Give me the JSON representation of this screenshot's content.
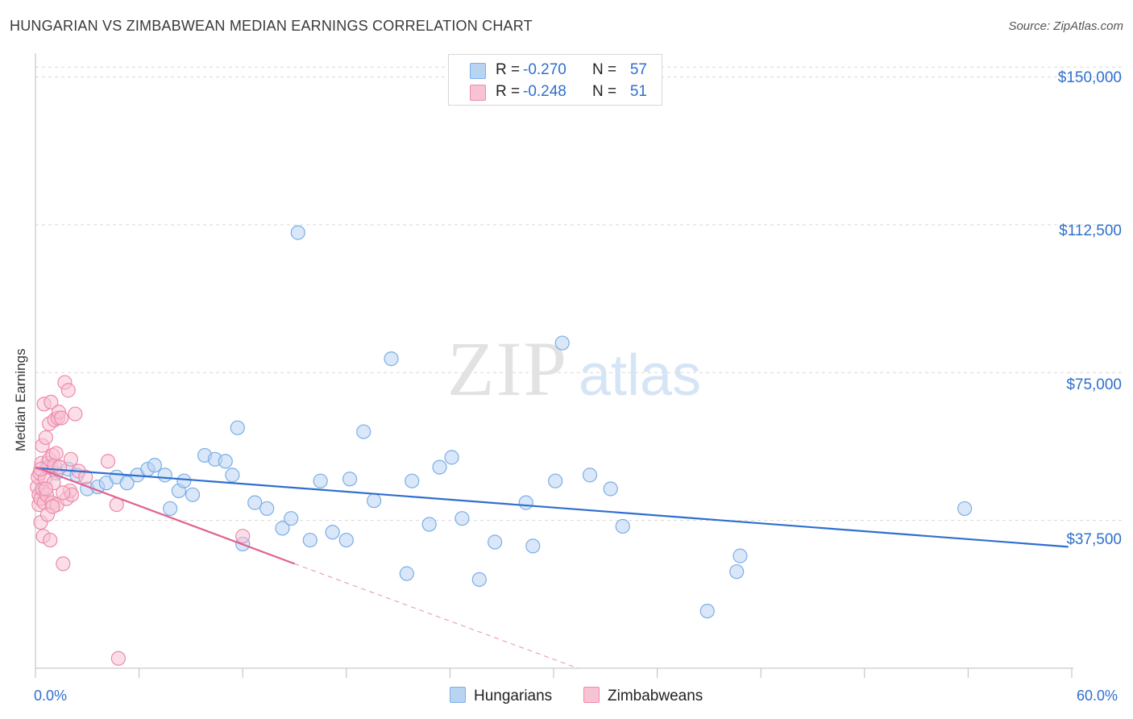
{
  "chart_data": {
    "type": "scatter",
    "title": "HUNGARIAN VS ZIMBABWEAN MEDIAN EARNINGS CORRELATION CHART",
    "source": "Source: ZipAtlas.com",
    "xlabel": "",
    "ylabel": "Median Earnings",
    "xlim": [
      0,
      60
    ],
    "ylim": [
      0,
      155000
    ],
    "x_tick_labels": [
      "0.0%",
      "60.0%"
    ],
    "y_ticks": [
      {
        "value": 37500,
        "label": "$37,500"
      },
      {
        "value": 75000,
        "label": "$75,000"
      },
      {
        "value": 112500,
        "label": "$112,500"
      },
      {
        "value": 150000,
        "label": "$150,000"
      }
    ],
    "legend": {
      "r_label": "R =",
      "n_label": "N =",
      "entries": [
        {
          "name": "Hungarians",
          "r": "-0.270",
          "n": "57",
          "color": "#7aaee8",
          "fill": "#b9d3f3"
        },
        {
          "name": "Zimbabweans",
          "r": "-0.248",
          "n": "51",
          "color": "#ee8aaa",
          "fill": "#f7c3d3"
        }
      ]
    },
    "series": [
      {
        "name": "Hungarians",
        "color": "#7aaee8",
        "trend": {
          "x": [
            0.0,
            59.8
          ],
          "y": [
            50800,
            30800
          ],
          "color": "#2f6fce"
        },
        "points": [
          {
            "x": 0.7,
            "y": 52000
          },
          {
            "x": 1.2,
            "y": 49500
          },
          {
            "x": 1.9,
            "y": 50500
          },
          {
            "x": 2.4,
            "y": 49000
          },
          {
            "x": 3.0,
            "y": 45500
          },
          {
            "x": 3.6,
            "y": 46000
          },
          {
            "x": 4.1,
            "y": 47000
          },
          {
            "x": 4.7,
            "y": 48500
          },
          {
            "x": 5.3,
            "y": 47000
          },
          {
            "x": 5.9,
            "y": 49000
          },
          {
            "x": 6.5,
            "y": 50500
          },
          {
            "x": 6.9,
            "y": 51500
          },
          {
            "x": 7.5,
            "y": 49000
          },
          {
            "x": 7.8,
            "y": 40500
          },
          {
            "x": 8.3,
            "y": 45000
          },
          {
            "x": 8.6,
            "y": 47500
          },
          {
            "x": 9.1,
            "y": 44000
          },
          {
            "x": 9.8,
            "y": 54000
          },
          {
            "x": 10.4,
            "y": 53000
          },
          {
            "x": 11.0,
            "y": 52500
          },
          {
            "x": 11.4,
            "y": 49000
          },
          {
            "x": 11.7,
            "y": 61000
          },
          {
            "x": 12.0,
            "y": 31500
          },
          {
            "x": 12.7,
            "y": 42000
          },
          {
            "x": 13.4,
            "y": 40500
          },
          {
            "x": 14.3,
            "y": 35500
          },
          {
            "x": 14.8,
            "y": 38000
          },
          {
            "x": 15.2,
            "y": 110500
          },
          {
            "x": 15.9,
            "y": 32500
          },
          {
            "x": 16.5,
            "y": 47500
          },
          {
            "x": 17.2,
            "y": 34500
          },
          {
            "x": 18.0,
            "y": 32500
          },
          {
            "x": 18.2,
            "y": 48000
          },
          {
            "x": 19.0,
            "y": 60000
          },
          {
            "x": 19.6,
            "y": 42500
          },
          {
            "x": 20.6,
            "y": 78500
          },
          {
            "x": 21.5,
            "y": 24000
          },
          {
            "x": 21.8,
            "y": 47500
          },
          {
            "x": 22.8,
            "y": 36500
          },
          {
            "x": 23.4,
            "y": 51000
          },
          {
            "x": 24.1,
            "y": 53500
          },
          {
            "x": 24.7,
            "y": 38000
          },
          {
            "x": 25.7,
            "y": 22500
          },
          {
            "x": 26.6,
            "y": 32000
          },
          {
            "x": 28.4,
            "y": 42000
          },
          {
            "x": 28.8,
            "y": 31000
          },
          {
            "x": 30.1,
            "y": 47500
          },
          {
            "x": 30.5,
            "y": 82500
          },
          {
            "x": 32.1,
            "y": 49000
          },
          {
            "x": 33.3,
            "y": 45500
          },
          {
            "x": 34.0,
            "y": 36000
          },
          {
            "x": 38.9,
            "y": 14500
          },
          {
            "x": 40.6,
            "y": 24500
          },
          {
            "x": 40.8,
            "y": 28500
          },
          {
            "x": 53.8,
            "y": 40500
          },
          {
            "x": 0.4,
            "y": 45000
          },
          {
            "x": 0.9,
            "y": 51000
          }
        ]
      },
      {
        "name": "Zimbabweans",
        "color": "#ee8aaa",
        "trend": {
          "x": [
            0.0,
            15.0
          ],
          "y": [
            51000,
            26500
          ],
          "color": "#e0628c"
        },
        "trend_extension": {
          "x": [
            15.0,
            31.4
          ],
          "y": [
            26500,
            0
          ]
        },
        "points": [
          {
            "x": 0.1,
            "y": 46000
          },
          {
            "x": 0.15,
            "y": 48500
          },
          {
            "x": 0.2,
            "y": 44000
          },
          {
            "x": 0.2,
            "y": 41500
          },
          {
            "x": 0.25,
            "y": 49500
          },
          {
            "x": 0.3,
            "y": 43000
          },
          {
            "x": 0.3,
            "y": 37000
          },
          {
            "x": 0.35,
            "y": 52000
          },
          {
            "x": 0.4,
            "y": 45500
          },
          {
            "x": 0.4,
            "y": 56500
          },
          {
            "x": 0.45,
            "y": 33500
          },
          {
            "x": 0.5,
            "y": 42000
          },
          {
            "x": 0.5,
            "y": 67000
          },
          {
            "x": 0.55,
            "y": 48000
          },
          {
            "x": 0.6,
            "y": 58500
          },
          {
            "x": 0.65,
            "y": 44000
          },
          {
            "x": 0.7,
            "y": 39000
          },
          {
            "x": 0.75,
            "y": 51000
          },
          {
            "x": 0.8,
            "y": 53000
          },
          {
            "x": 0.8,
            "y": 62000
          },
          {
            "x": 0.85,
            "y": 32500
          },
          {
            "x": 0.9,
            "y": 67500
          },
          {
            "x": 0.95,
            "y": 42000
          },
          {
            "x": 1.0,
            "y": 54000
          },
          {
            "x": 1.05,
            "y": 47000
          },
          {
            "x": 1.1,
            "y": 51500
          },
          {
            "x": 1.1,
            "y": 63000
          },
          {
            "x": 1.2,
            "y": 54500
          },
          {
            "x": 1.25,
            "y": 41500
          },
          {
            "x": 1.3,
            "y": 63500
          },
          {
            "x": 1.35,
            "y": 65000
          },
          {
            "x": 1.4,
            "y": 51000
          },
          {
            "x": 1.5,
            "y": 63500
          },
          {
            "x": 1.6,
            "y": 26500
          },
          {
            "x": 1.7,
            "y": 72500
          },
          {
            "x": 1.8,
            "y": 43000
          },
          {
            "x": 1.9,
            "y": 70500
          },
          {
            "x": 2.0,
            "y": 45000
          },
          {
            "x": 2.05,
            "y": 53000
          },
          {
            "x": 2.1,
            "y": 44000
          },
          {
            "x": 2.3,
            "y": 64500
          },
          {
            "x": 2.5,
            "y": 50000
          },
          {
            "x": 2.9,
            "y": 48500
          },
          {
            "x": 4.2,
            "y": 52500
          },
          {
            "x": 4.7,
            "y": 41500
          },
          {
            "x": 4.8,
            "y": 2500
          },
          {
            "x": 12.0,
            "y": 33500
          },
          {
            "x": 0.3,
            "y": 50500
          },
          {
            "x": 1.6,
            "y": 44500
          },
          {
            "x": 0.6,
            "y": 45500
          },
          {
            "x": 1.0,
            "y": 41000
          }
        ]
      }
    ]
  }
}
